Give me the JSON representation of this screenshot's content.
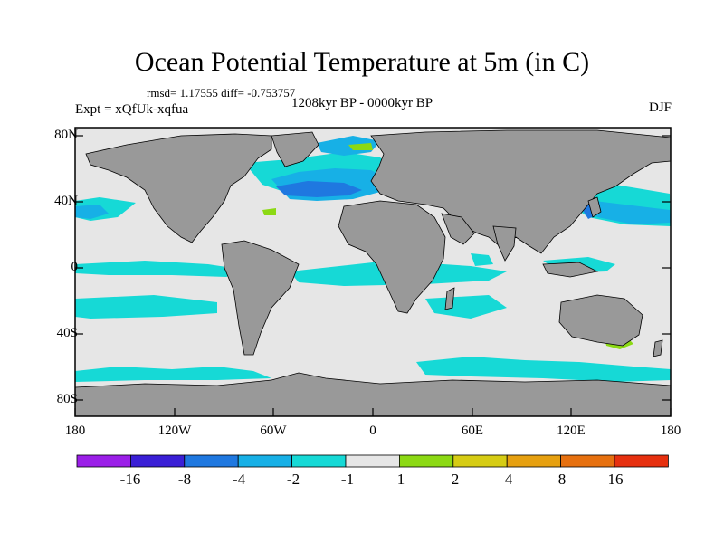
{
  "title": "Ocean Potential Temperature at 5m (in C)",
  "stats": "rmsd= 1.17555 diff= -0.753757",
  "experiment": "Expt = xQfUk-xqfua",
  "period": "1208kyr BP - 0000kyr BP",
  "season": "DJF",
  "y_ticks": [
    "80N",
    "40N",
    "0",
    "40S",
    "80S"
  ],
  "x_ticks": [
    "180",
    "120W",
    "60W",
    "0",
    "60E",
    "120E",
    "180"
  ],
  "colorbar": {
    "labels": [
      "-16",
      "-8",
      "-4",
      "-2",
      "-1",
      "1",
      "2",
      "4",
      "8",
      "16"
    ],
    "colors": [
      "#9b1fe8",
      "#3a1fd6",
      "#1f78e0",
      "#17b0e6",
      "#16d9d6",
      "#e6e6e6",
      "#8cd914",
      "#d6cc14",
      "#e6a010",
      "#e6700f",
      "#e6300f"
    ]
  },
  "colors": {
    "land": "#999999",
    "ocean_neutral": "#e6e6e6",
    "cyan": "#16d9d6",
    "light_blue": "#17b0e6",
    "blue": "#1f78e0",
    "green": "#8cd914"
  }
}
